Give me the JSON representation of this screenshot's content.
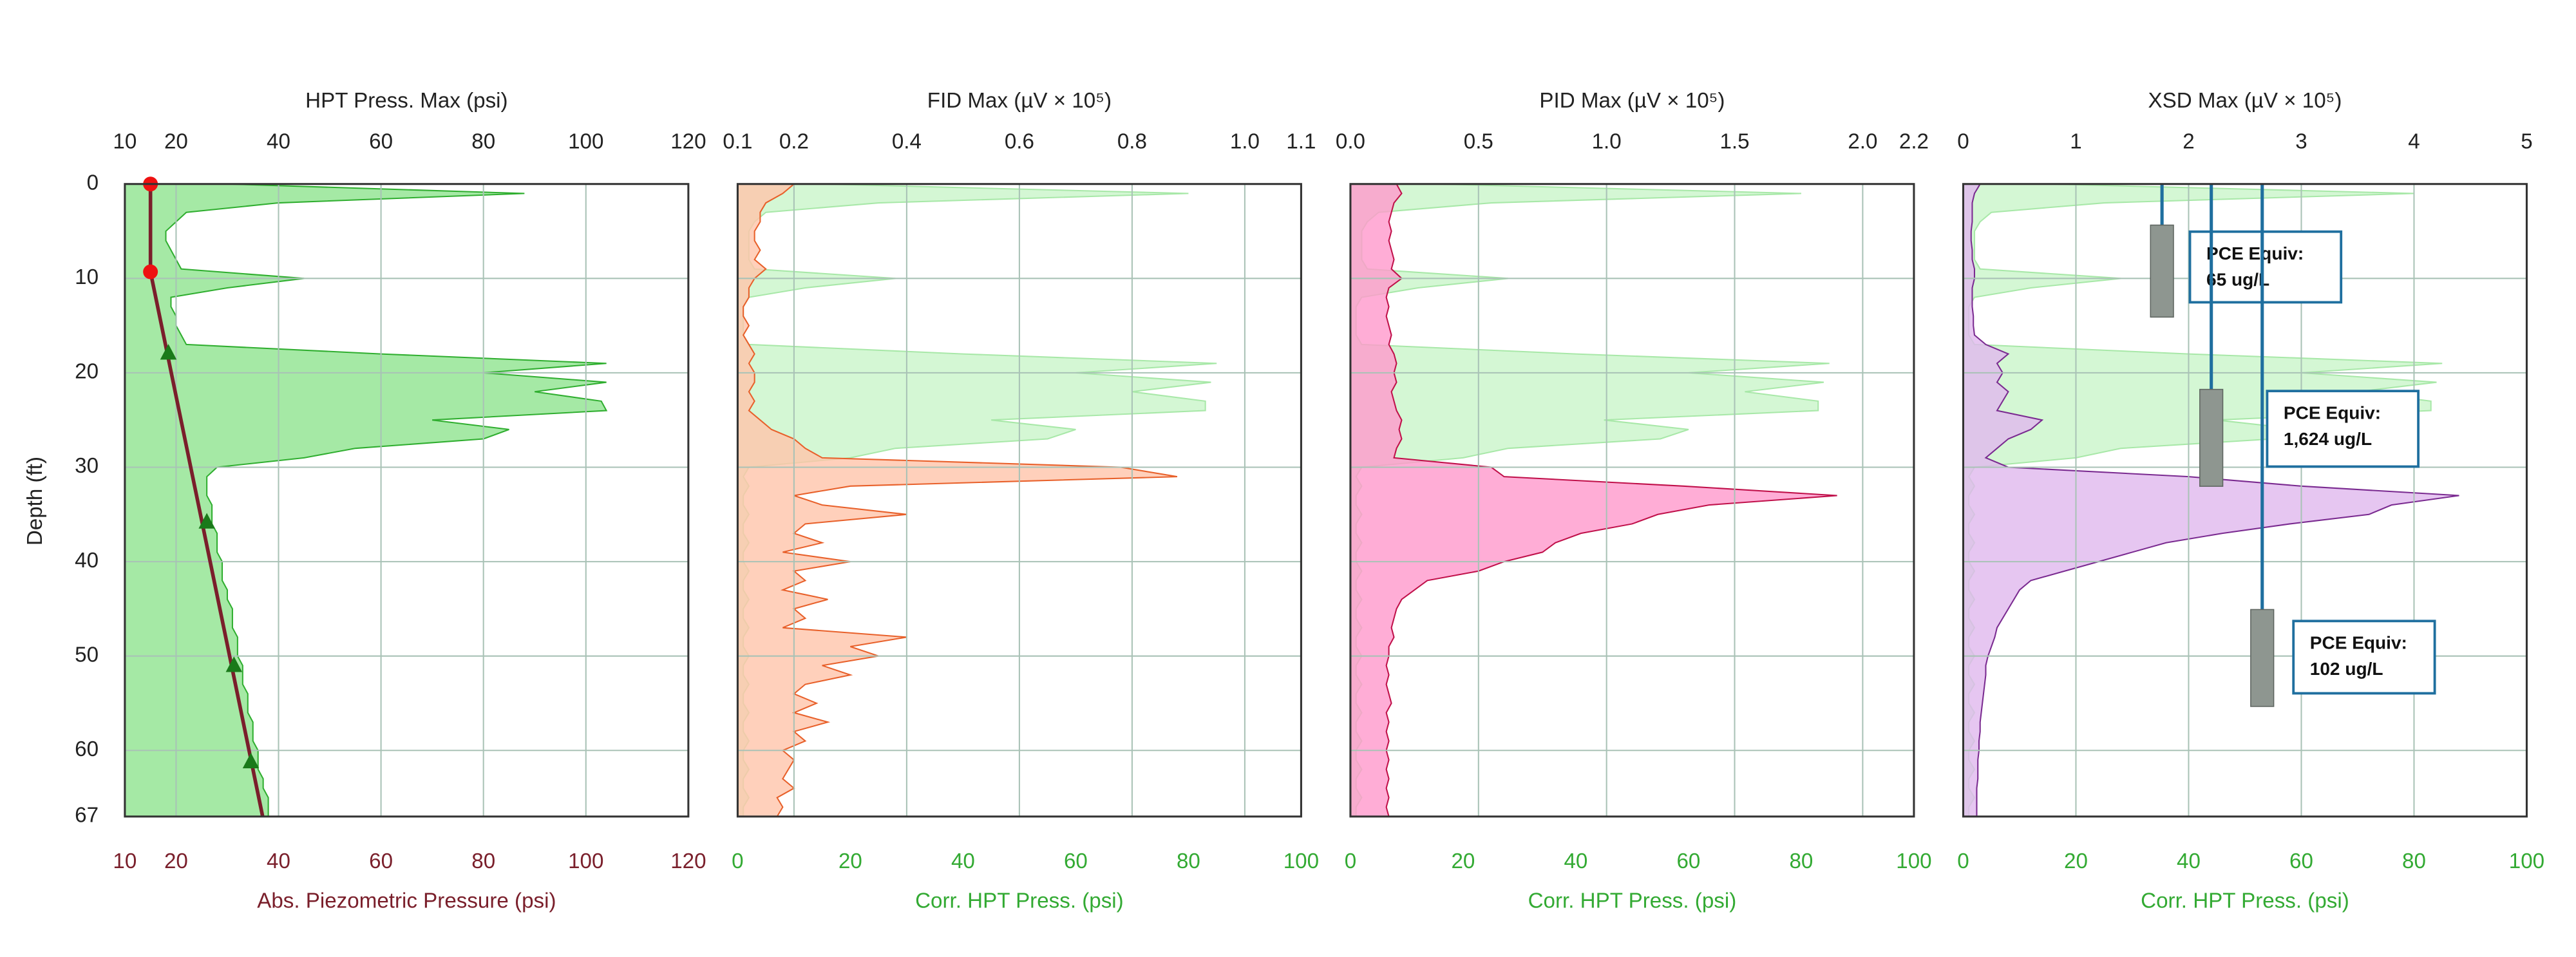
{
  "chart_data": [
    {
      "type": "area",
      "title": "HPT Press. Max (psi)",
      "xlabel": "Abs. Piezometric Pressure (psi)",
      "xlabel_color": "#7a1f2b",
      "ylabel": "Depth (ft)",
      "x2lim": [
        10,
        120
      ],
      "x2ticks": [
        10,
        20,
        40,
        60,
        80,
        100,
        120
      ],
      "xlim": [
        10,
        120
      ],
      "xticks": [
        10,
        20,
        40,
        60,
        80,
        100,
        120
      ],
      "ylim": [
        0,
        67
      ],
      "yticks": [
        0,
        10,
        20,
        30,
        40,
        50,
        60,
        67
      ],
      "grid": true,
      "depth": [
        0,
        1,
        2,
        3,
        4,
        5,
        6,
        7,
        8,
        9,
        10,
        11,
        12,
        13,
        14,
        15,
        16,
        17,
        18,
        19,
        20,
        21,
        22,
        23,
        24,
        25,
        26,
        27,
        28,
        29,
        30,
        31,
        32,
        33,
        34,
        35,
        36,
        37,
        38,
        39,
        40,
        41,
        42,
        43,
        44,
        45,
        46,
        47,
        48,
        49,
        50,
        51,
        52,
        53,
        54,
        55,
        56,
        57,
        58,
        59,
        60,
        61,
        62,
        63,
        64,
        65,
        66,
        67
      ],
      "series": [
        {
          "axis": "x2",
          "color": "#2fae2f",
          "fill": "#8fe38f",
          "values": [
            30,
            88,
            40,
            22,
            20,
            18,
            18,
            19,
            20,
            21,
            45,
            30,
            19,
            19,
            20,
            20,
            21,
            22,
            60,
            104,
            80,
            104,
            90,
            103,
            104,
            70,
            85,
            80,
            55,
            45,
            28,
            26,
            26,
            26,
            27,
            27,
            27,
            28,
            28,
            28,
            29,
            29,
            29,
            30,
            30,
            31,
            31,
            31,
            32,
            32,
            32,
            33,
            33,
            33,
            34,
            34,
            34,
            35,
            35,
            35,
            36,
            36,
            36,
            37,
            37,
            38,
            38,
            38
          ]
        }
      ],
      "line": {
        "color": "#7a1f2b",
        "depth": [
          0,
          9.3,
          67
        ],
        "values": [
          15,
          15,
          36.9
        ]
      },
      "markers": [
        {
          "shape": "circle",
          "color": "#ee1111",
          "depth": [
            0,
            9.3
          ],
          "values": [
            15,
            15
          ]
        },
        {
          "shape": "triangle",
          "color": "#1a7a1a",
          "depth": [
            17.9,
            35.8,
            51,
            61.2
          ],
          "values": [
            18.5,
            26,
            31.3,
            34.6
          ]
        }
      ]
    },
    {
      "type": "area",
      "title": "FID Max (µV × 10⁵)",
      "xlabel": "Corr. HPT Press. (psi)",
      "xlabel_color": "#33aa33",
      "x2lim": [
        0.1,
        1.1
      ],
      "x2ticks": [
        0.1,
        0.2,
        0.4,
        0.6,
        0.8,
        {
          "value": 1,
          "label": "1.0"
        },
        1.1
      ],
      "xlim": [
        0,
        100
      ],
      "xticks": [
        0,
        20,
        40,
        60,
        80,
        100
      ],
      "ylim": [
        0,
        67
      ],
      "yticks": [
        0,
        10,
        20,
        30,
        40,
        50,
        60,
        67
      ],
      "grid": true,
      "depth": [
        0,
        1,
        2,
        3,
        4,
        5,
        6,
        7,
        8,
        9,
        10,
        11,
        12,
        13,
        14,
        15,
        16,
        17,
        18,
        19,
        20,
        21,
        22,
        23,
        24,
        25,
        26,
        27,
        28,
        29,
        30,
        31,
        32,
        33,
        34,
        35,
        36,
        37,
        38,
        39,
        40,
        41,
        42,
        43,
        44,
        45,
        46,
        47,
        48,
        49,
        50,
        51,
        52,
        53,
        54,
        55,
        56,
        57,
        58,
        59,
        60,
        61,
        62,
        63,
        64,
        65,
        66,
        67
      ],
      "series": [
        {
          "color": "#a8e8a8",
          "fill": "#c9f5c9",
          "values": [
            15,
            80,
            25,
            5,
            3,
            2,
            2,
            2,
            2,
            3,
            28,
            12,
            2,
            1,
            1,
            1,
            1,
            2,
            40,
            85,
            60,
            84,
            70,
            83,
            83,
            45,
            60,
            55,
            28,
            20,
            2,
            1,
            2,
            1,
            1,
            2,
            1,
            1,
            2,
            1,
            1,
            2,
            1,
            1,
            2,
            1,
            1,
            2,
            1,
            1,
            2,
            1,
            1,
            2,
            1,
            1,
            2,
            1,
            1,
            2,
            1,
            1,
            2,
            1,
            1,
            2,
            1,
            1
          ]
        },
        {
          "axis": "x2",
          "color": "#e8602a",
          "fill": "#ffc4aa",
          "values": [
            0.2,
            0.18,
            0.15,
            0.14,
            0.14,
            0.13,
            0.13,
            0.14,
            0.13,
            0.15,
            0.13,
            0.12,
            0.12,
            0.11,
            0.11,
            0.12,
            0.11,
            0.12,
            0.13,
            0.12,
            0.13,
            0.13,
            0.12,
            0.13,
            0.12,
            0.14,
            0.16,
            0.2,
            0.22,
            0.25,
            0.78,
            0.88,
            0.3,
            0.2,
            0.25,
            0.4,
            0.22,
            0.2,
            0.25,
            0.18,
            0.3,
            0.2,
            0.22,
            0.18,
            0.26,
            0.2,
            0.22,
            0.18,
            0.4,
            0.3,
            0.35,
            0.25,
            0.3,
            0.22,
            0.2,
            0.24,
            0.2,
            0.26,
            0.2,
            0.22,
            0.18,
            0.2,
            0.19,
            0.18,
            0.2,
            0.17,
            0.18,
            0.17
          ]
        }
      ]
    },
    {
      "type": "area",
      "title": "PID Max (µV × 10⁵)",
      "xlabel": "Corr. HPT Press. (psi)",
      "xlabel_color": "#33aa33",
      "x2lim": [
        0,
        2.2
      ],
      "x2ticks": [
        {
          "value": 0,
          "label": "0.0"
        },
        0.5,
        {
          "value": 1,
          "label": "1.0"
        },
        1.5,
        {
          "value": 2,
          "label": "2.0"
        },
        2.2
      ],
      "xlim": [
        0,
        100
      ],
      "xticks": [
        0,
        20,
        40,
        60,
        80,
        100
      ],
      "ylim": [
        0,
        67
      ],
      "yticks": [
        0,
        10,
        20,
        30,
        40,
        50,
        60,
        67
      ],
      "grid": true,
      "depth": [
        0,
        1,
        2,
        3,
        4,
        5,
        6,
        7,
        8,
        9,
        10,
        11,
        12,
        13,
        14,
        15,
        16,
        17,
        18,
        19,
        20,
        21,
        22,
        23,
        24,
        25,
        26,
        27,
        28,
        29,
        30,
        31,
        32,
        33,
        34,
        35,
        36,
        37,
        38,
        39,
        40,
        41,
        42,
        43,
        44,
        45,
        46,
        47,
        48,
        49,
        50,
        51,
        52,
        53,
        54,
        55,
        56,
        57,
        58,
        59,
        60,
        61,
        62,
        63,
        64,
        65,
        66,
        67
      ],
      "series": [
        {
          "color": "#a8e8a8",
          "fill": "#c9f5c9",
          "values": [
            15,
            80,
            25,
            5,
            3,
            2,
            2,
            2,
            2,
            3,
            28,
            12,
            2,
            1,
            1,
            1,
            1,
            2,
            40,
            85,
            60,
            84,
            70,
            83,
            83,
            45,
            60,
            55,
            28,
            20,
            2,
            1,
            2,
            1,
            1,
            2,
            1,
            1,
            2,
            1,
            1,
            2,
            1,
            1,
            2,
            1,
            1,
            2,
            1,
            1,
            2,
            1,
            1,
            2,
            1,
            1,
            2,
            1,
            1,
            2,
            1,
            1,
            2,
            1,
            1,
            2,
            1,
            1
          ]
        },
        {
          "axis": "x2",
          "color": "#c0104a",
          "fill": "#ff99cc",
          "values": [
            0.18,
            0.2,
            0.17,
            0.16,
            0.15,
            0.16,
            0.15,
            0.16,
            0.17,
            0.16,
            0.2,
            0.15,
            0.14,
            0.15,
            0.14,
            0.15,
            0.16,
            0.15,
            0.17,
            0.18,
            0.17,
            0.18,
            0.16,
            0.17,
            0.18,
            0.2,
            0.19,
            0.2,
            0.18,
            0.17,
            0.55,
            0.6,
            1.3,
            1.9,
            1.4,
            1.2,
            1.1,
            0.9,
            0.8,
            0.75,
            0.6,
            0.5,
            0.3,
            0.25,
            0.2,
            0.18,
            0.17,
            0.16,
            0.17,
            0.15,
            0.15,
            0.14,
            0.15,
            0.14,
            0.15,
            0.16,
            0.14,
            0.15,
            0.14,
            0.15,
            0.14,
            0.15,
            0.14,
            0.15,
            0.14,
            0.15,
            0.14,
            0.15
          ]
        }
      ]
    },
    {
      "type": "area",
      "title": "XSD Max (µV × 10⁵)",
      "xlabel": "Corr. HPT Press. (psi)",
      "xlabel_color": "#33aa33",
      "x2lim": [
        0,
        5
      ],
      "x2ticks": [
        0,
        1,
        2,
        3,
        4,
        5
      ],
      "xlim": [
        0,
        100
      ],
      "xticks": [
        0,
        20,
        40,
        60,
        80,
        100
      ],
      "ylim": [
        0,
        67
      ],
      "yticks": [
        0,
        10,
        20,
        30,
        40,
        50,
        60,
        67
      ],
      "grid": true,
      "depth": [
        0,
        1,
        2,
        3,
        4,
        5,
        6,
        7,
        8,
        9,
        10,
        11,
        12,
        13,
        14,
        15,
        16,
        17,
        18,
        19,
        20,
        21,
        22,
        23,
        24,
        25,
        26,
        27,
        28,
        29,
        30,
        31,
        32,
        33,
        34,
        35,
        36,
        37,
        38,
        39,
        40,
        41,
        42,
        43,
        44,
        45,
        46,
        47,
        48,
        49,
        50,
        51,
        52,
        53,
        54,
        55,
        56,
        57,
        58,
        59,
        60,
        61,
        62,
        63,
        64,
        65,
        66,
        67
      ],
      "series": [
        {
          "color": "#a8e8a8",
          "fill": "#c9f5c9",
          "values": [
            15,
            80,
            25,
            5,
            3,
            2,
            2,
            2,
            2,
            3,
            28,
            12,
            2,
            1,
            1,
            1,
            1,
            2,
            40,
            85,
            60,
            84,
            70,
            83,
            83,
            45,
            60,
            55,
            28,
            20,
            2,
            1,
            2,
            1,
            1,
            2,
            1,
            1,
            2,
            1,
            1,
            2,
            1,
            1,
            2,
            1,
            1,
            2,
            1,
            1,
            2,
            1,
            1,
            2,
            1,
            1,
            2,
            1,
            1,
            2,
            1,
            1,
            2,
            1,
            1,
            2,
            1,
            1
          ]
        },
        {
          "axis": "x2",
          "color": "#7a2a90",
          "fill": "#e0b8ee",
          "values": [
            0.15,
            0.1,
            0.08,
            0.08,
            0.08,
            0.07,
            0.07,
            0.08,
            0.08,
            0.1,
            0.1,
            0.08,
            0.08,
            0.08,
            0.09,
            0.09,
            0.1,
            0.2,
            0.4,
            0.3,
            0.35,
            0.3,
            0.4,
            0.35,
            0.3,
            0.7,
            0.6,
            0.4,
            0.3,
            0.2,
            0.4,
            2.0,
            3.0,
            4.4,
            3.8,
            3.6,
            2.9,
            2.3,
            1.8,
            1.5,
            1.2,
            0.9,
            0.6,
            0.5,
            0.45,
            0.4,
            0.35,
            0.3,
            0.28,
            0.25,
            0.22,
            0.2,
            0.2,
            0.19,
            0.18,
            0.17,
            0.16,
            0.15,
            0.15,
            0.14,
            0.14,
            0.13,
            0.13,
            0.13,
            0.12,
            0.12,
            0.12,
            0.12
          ]
        }
      ],
      "annotations": [
        {
          "label": "PCE Equiv:",
          "result": "65 ug/L"
        },
        {
          "label": "PCE Equiv:",
          "result": "1,624 ug/L"
        },
        {
          "label": "PCE Equiv:",
          "result": "102 ug/L"
        }
      ]
    }
  ]
}
